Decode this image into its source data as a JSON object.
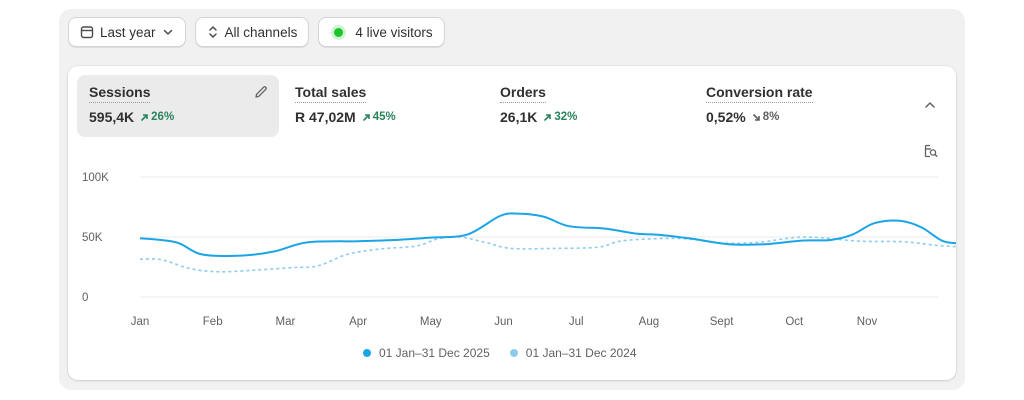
{
  "toolbar": {
    "date_range": "Last year",
    "channels": "All channels",
    "live_visitors": "4 live visitors"
  },
  "metrics": [
    {
      "label": "Sessions",
      "value": "595,4K",
      "delta": "26%",
      "direction": "up"
    },
    {
      "label": "Total sales",
      "value": "R 47,02M",
      "delta": "45%",
      "direction": "up"
    },
    {
      "label": "Orders",
      "value": "26,1K",
      "delta": "32%",
      "direction": "up"
    },
    {
      "label": "Conversion rate",
      "value": "0,52%",
      "delta": "8%",
      "direction": "down"
    }
  ],
  "colors": {
    "current": "#1ba5e5",
    "previous": "#8fcbef",
    "delta_up": "#29845a",
    "delta_down": "#616161",
    "live_dot": "#1bc52c"
  },
  "icons": [
    "calendar-icon",
    "sort-arrows-icon",
    "pencil-icon",
    "chevron-up-icon",
    "chart-search-icon"
  ],
  "chart_data": {
    "type": "line",
    "x": [
      "Jan",
      "Feb",
      "Mar",
      "Apr",
      "May",
      "Jun",
      "Jul",
      "Aug",
      "Sept",
      "Oct",
      "Nov"
    ],
    "x_ticks": [
      "Jan",
      "Feb",
      "Mar",
      "Apr",
      "May",
      "Jun",
      "Jul",
      "Aug",
      "Sept",
      "Oct",
      "Nov"
    ],
    "y_ticks": [
      "100K",
      "50K",
      "0"
    ],
    "ylim": [
      0,
      100000
    ],
    "grid": true,
    "series": [
      {
        "name": "01 Jan–31 Dec 2025",
        "style": "solid",
        "points": [
          [
            0,
            49000
          ],
          [
            0.5,
            45500
          ],
          [
            0.85,
            35500
          ],
          [
            1.4,
            34500
          ],
          [
            1.85,
            38000
          ],
          [
            2.3,
            45500
          ],
          [
            3.0,
            46500
          ],
          [
            3.5,
            47500
          ],
          [
            4.0,
            49500
          ],
          [
            4.5,
            52000
          ],
          [
            4.95,
            67500
          ],
          [
            5.2,
            69500
          ],
          [
            5.55,
            67000
          ],
          [
            5.9,
            59000
          ],
          [
            6.4,
            57000
          ],
          [
            6.8,
            53000
          ],
          [
            7.2,
            51500
          ],
          [
            7.6,
            48500
          ],
          [
            8.1,
            44000
          ],
          [
            8.6,
            44000
          ],
          [
            9.1,
            47000
          ],
          [
            9.5,
            47500
          ],
          [
            9.8,
            52000
          ],
          [
            10.1,
            61500
          ],
          [
            10.45,
            63500
          ],
          [
            10.75,
            58000
          ],
          [
            11.05,
            46500
          ],
          [
            11.35,
            44500
          ]
        ]
      },
      {
        "name": "01 Jan–31 Dec 2024",
        "style": "dashed",
        "points": [
          [
            0,
            31500
          ],
          [
            0.3,
            31000
          ],
          [
            0.7,
            23500
          ],
          [
            1.1,
            21000
          ],
          [
            1.6,
            22500
          ],
          [
            2.1,
            24500
          ],
          [
            2.45,
            26000
          ],
          [
            2.85,
            35500
          ],
          [
            3.3,
            40000
          ],
          [
            3.8,
            42500
          ],
          [
            4.1,
            48500
          ],
          [
            4.4,
            50000
          ],
          [
            4.75,
            45500
          ],
          [
            5.1,
            40500
          ],
          [
            5.7,
            40500
          ],
          [
            6.3,
            41500
          ],
          [
            6.6,
            46500
          ],
          [
            7.05,
            48500
          ],
          [
            7.5,
            48500
          ],
          [
            8.0,
            45000
          ],
          [
            8.5,
            45500
          ],
          [
            9.0,
            49500
          ],
          [
            9.35,
            49500
          ],
          [
            9.9,
            46500
          ],
          [
            10.5,
            46000
          ],
          [
            11.05,
            42500
          ],
          [
            11.35,
            42000
          ]
        ]
      }
    ]
  }
}
